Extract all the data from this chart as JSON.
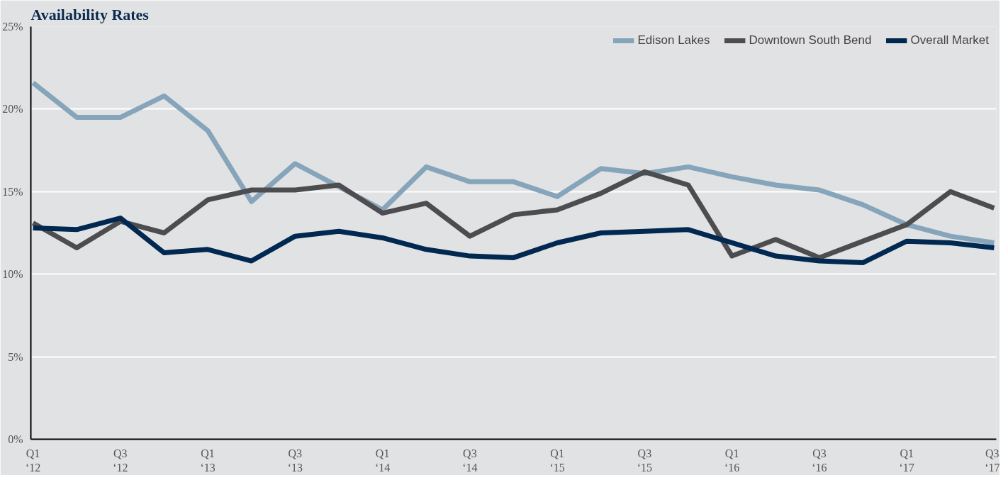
{
  "chart_data": {
    "type": "line",
    "title": "Availability Rates",
    "categories": [
      "Q1\n‘12",
      null,
      "Q3\n‘12",
      null,
      "Q1\n‘13",
      null,
      "Q3\n‘13",
      null,
      "Q1\n‘14",
      null,
      "Q3\n‘14",
      null,
      "Q1\n‘15",
      null,
      "Q3\n‘15",
      null,
      "Q1\n‘16",
      null,
      "Q3\n‘16",
      null,
      "Q1\n‘17",
      null,
      "Q3\n‘17"
    ],
    "series": [
      {
        "name": "Edison Lakes",
        "color": "#86a5ba",
        "values": [
          21.6,
          19.5,
          19.5,
          20.8,
          18.7,
          14.4,
          16.7,
          15.3,
          13.9,
          16.5,
          15.6,
          15.6,
          14.7,
          16.4,
          16.1,
          16.5,
          15.9,
          15.4,
          15.1,
          14.2,
          13.0,
          12.3,
          11.9
        ]
      },
      {
        "name": "Downtown South Bend",
        "color": "#4d4d4f",
        "values": [
          13.1,
          11.6,
          13.2,
          12.5,
          14.5,
          15.1,
          15.1,
          15.4,
          13.7,
          14.3,
          12.3,
          13.6,
          13.9,
          14.9,
          16.2,
          15.4,
          11.1,
          12.1,
          11.0,
          12.0,
          13.0,
          15.0,
          14.0
        ]
      },
      {
        "name": "Overall Market",
        "color": "#012850",
        "values": [
          12.8,
          12.7,
          13.4,
          11.3,
          11.5,
          10.8,
          12.3,
          12.6,
          12.2,
          11.5,
          11.1,
          11.0,
          11.9,
          12.5,
          12.6,
          12.7,
          11.9,
          11.1,
          10.8,
          10.7,
          12.0,
          11.9,
          11.6
        ]
      }
    ],
    "ylim": [
      0,
      25
    ],
    "yticks": [
      {
        "value": 0,
        "label": "0%"
      },
      {
        "value": 5,
        "label": "5%"
      },
      {
        "value": 10,
        "label": "10%"
      },
      {
        "value": 15,
        "label": "15%"
      },
      {
        "value": 20,
        "label": "20%"
      },
      {
        "value": 25,
        "label": "25%"
      }
    ],
    "grid": "y",
    "legend": "top right",
    "marker": "none",
    "line_style": "solid"
  }
}
